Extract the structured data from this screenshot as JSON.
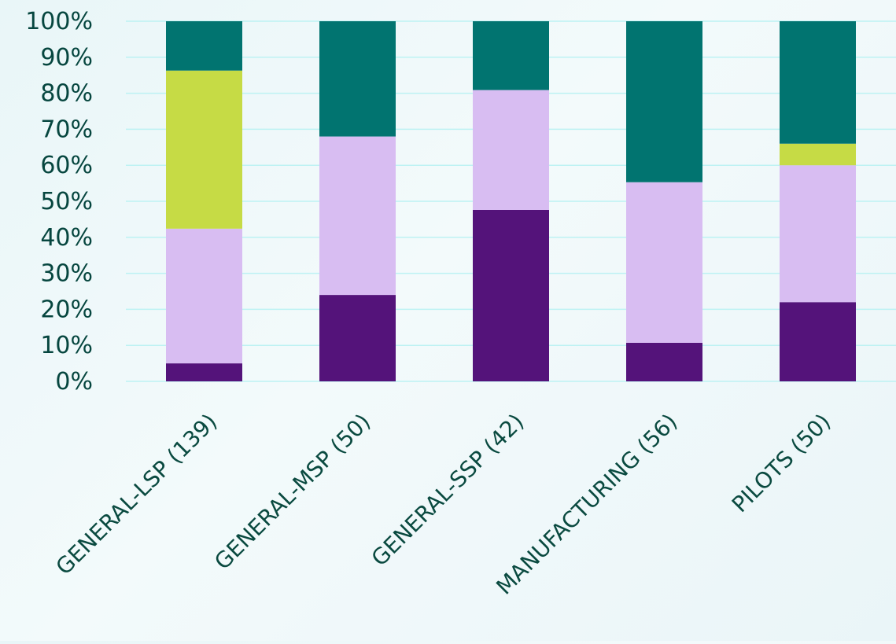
{
  "chart_data": {
    "type": "bar",
    "stacked": true,
    "normalized": true,
    "title": "",
    "xlabel": "",
    "ylabel": "",
    "ylim": [
      0,
      100
    ],
    "y_ticks": [
      "0%",
      "10%",
      "20%",
      "30%",
      "40%",
      "50%",
      "60%",
      "70%",
      "80%",
      "90%",
      "100%"
    ],
    "grid": true,
    "legend": "none",
    "categories": [
      "GENERAL-LSP (139)",
      "GENERAL-MSP (50)",
      "GENERAL-SSP (42)",
      "MANUFACTURING (56)",
      "PILOTS (50)"
    ],
    "series": [
      {
        "color": "#54137a",
        "values": [
          5,
          24,
          47.6,
          10.7,
          22
        ]
      },
      {
        "color": "#d8bdf2",
        "values": [
          37.4,
          44,
          33.3,
          44.6,
          38
        ]
      },
      {
        "color": "#c6db45",
        "values": [
          43.9,
          0,
          0,
          0,
          6
        ]
      },
      {
        "color": "#017470",
        "values": [
          13.7,
          32,
          19.1,
          44.7,
          34
        ]
      }
    ]
  }
}
